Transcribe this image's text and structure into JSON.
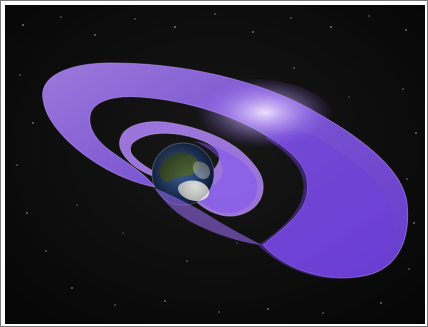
{
  "image": {
    "subject": "radiation-belts-around-earth",
    "colors": {
      "background": "#090909",
      "belt_outer": "#8a5cf0",
      "belt_inner": "#b07cff",
      "belt_highlight": "#e7d8ff",
      "earth_ocean": "#1f3f7a",
      "earth_land": "#5d7a3c",
      "border": "#7a7a7a"
    }
  }
}
